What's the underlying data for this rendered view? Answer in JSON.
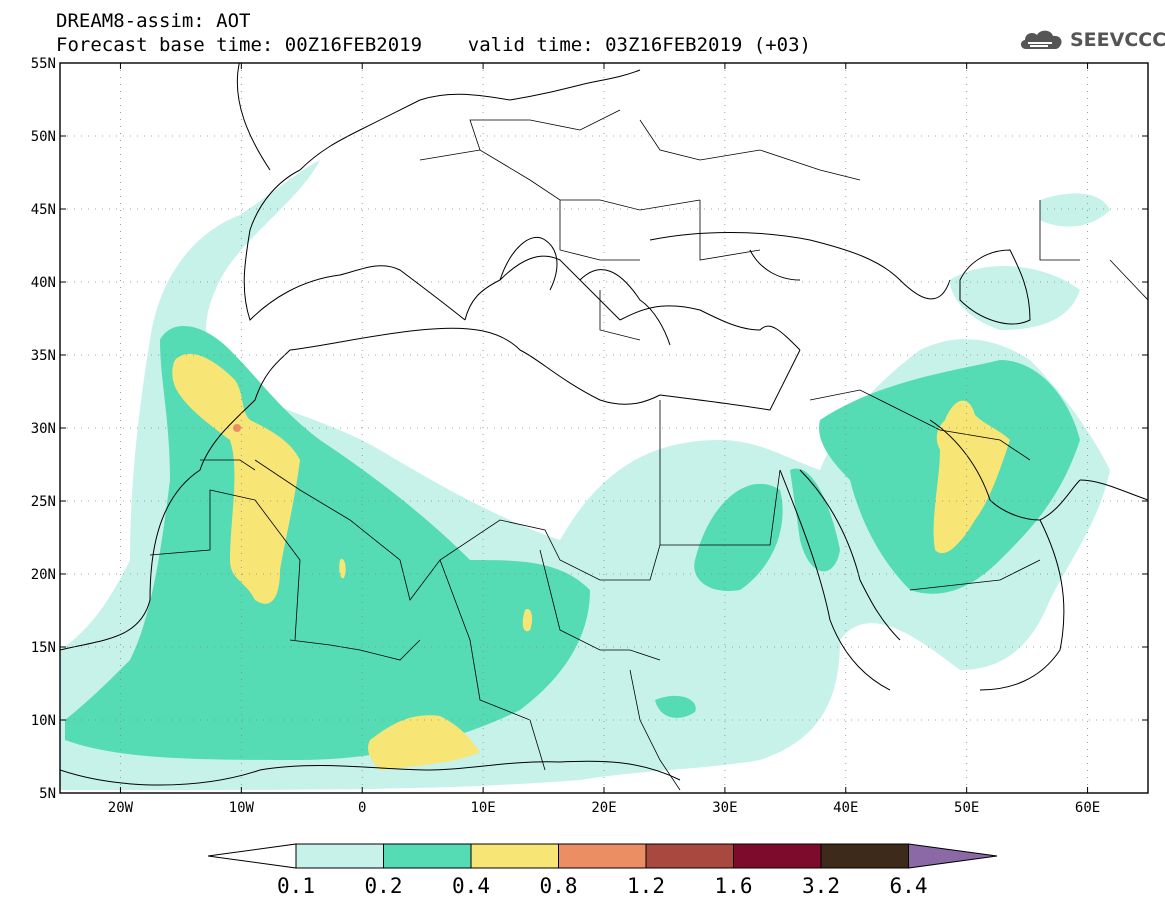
{
  "title": {
    "line1": "DREAM8-assim: AOT",
    "line2": "Forecast base time: 00Z16FEB2019    valid time: 03Z16FEB2019 (+03)"
  },
  "logo": {
    "text": "SEEVCCC",
    "icon": "cloud-icon"
  },
  "map": {
    "lon_range": [
      -25,
      65
    ],
    "lat_range": [
      5,
      55
    ],
    "lat_ticks": [
      "55N",
      "50N",
      "45N",
      "40N",
      "35N",
      "30N",
      "25N",
      "20N",
      "15N",
      "10N",
      "5N"
    ],
    "lon_ticks": [
      "20W",
      "10W",
      "0",
      "10E",
      "20E",
      "30E",
      "40E",
      "50E",
      "60E"
    ],
    "grid": "dotted"
  },
  "colorbar": {
    "labels": [
      "0.1",
      "0.2",
      "0.4",
      "0.8",
      "1.2",
      "1.6",
      "3.2",
      "6.4"
    ],
    "colors": [
      "#ffffff",
      "#c6f2ea",
      "#55dcb4",
      "#f7e676",
      "#ec8e64",
      "#a8483e",
      "#7d0b2c",
      "#3e2a1a",
      "#8b68a6"
    ]
  }
}
